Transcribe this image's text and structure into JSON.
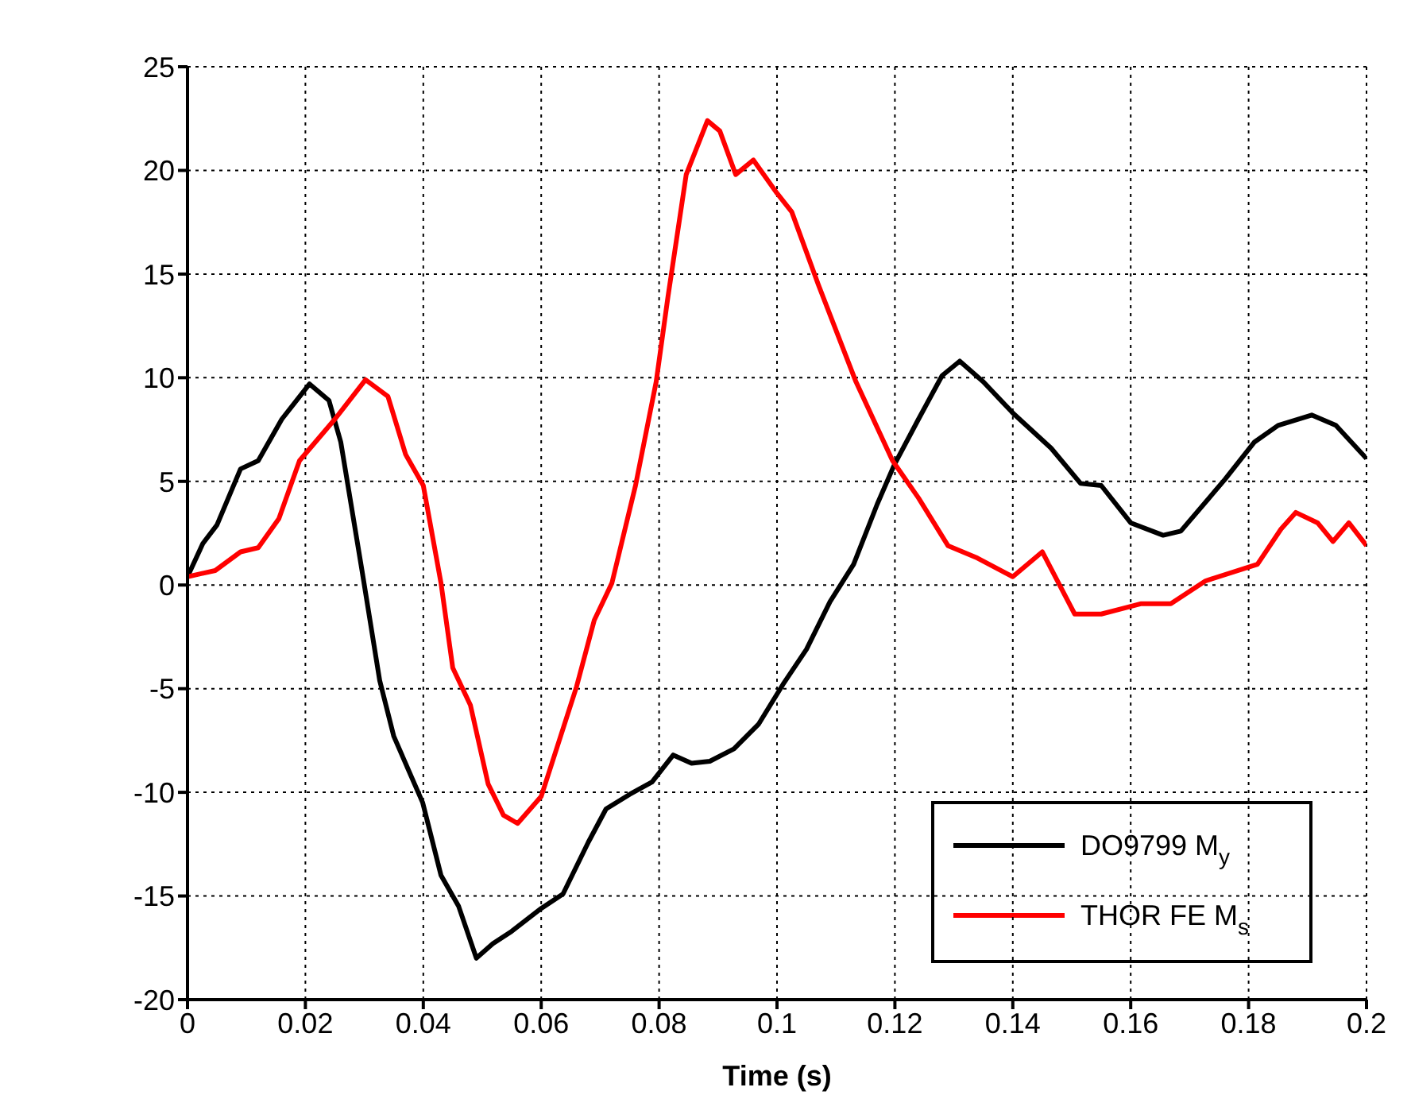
{
  "chart_data": {
    "type": "line",
    "xlabel": "Time (s)",
    "xlim": [
      0,
      0.2
    ],
    "xticks": [
      0,
      0.02,
      0.04,
      0.06,
      0.08,
      0.1,
      0.12,
      0.14,
      0.16,
      0.18,
      0.2
    ],
    "ylim": [
      -20,
      25
    ],
    "yticks": [
      -20,
      -15,
      -10,
      -5,
      0,
      5,
      10,
      15,
      20,
      25
    ],
    "grid": true,
    "legend": "bottom right",
    "marker": "none",
    "line_style": "solid",
    "series": [
      {
        "name": "DO9799 M$_{y}$",
        "color": "#000000",
        "x": [
          0,
          0.0026,
          0.005,
          0.009,
          0.012,
          0.016,
          0.0207,
          0.024,
          0.026,
          0.0296,
          0.0326,
          0.035,
          0.0399,
          0.043,
          0.046,
          0.049,
          0.0518,
          0.055,
          0.06,
          0.0637,
          0.068,
          0.071,
          0.075,
          0.0788,
          0.0824,
          0.0855,
          0.0886,
          0.0927,
          0.0969,
          0.101,
          0.105,
          0.109,
          0.113,
          0.117,
          0.1199,
          0.124,
          0.128,
          0.131,
          0.135,
          0.14,
          0.1465,
          0.1515,
          0.155,
          0.16,
          0.1655,
          0.1685,
          0.176,
          0.181,
          0.185,
          0.1907,
          0.1948,
          0.2
        ],
        "values": [
          0.4,
          2.0,
          2.9,
          5.6,
          6.0,
          8.0,
          9.7,
          8.9,
          6.9,
          0.7,
          -4.6,
          -7.3,
          -10.5,
          -14.0,
          -15.5,
          -18.0,
          -17.3,
          -16.7,
          -15.6,
          -14.9,
          -12.4,
          -10.8,
          -10.1,
          -9.5,
          -8.2,
          -8.6,
          -8.5,
          -7.9,
          -6.7,
          -4.8,
          -3.1,
          -0.8,
          1.0,
          3.9,
          5.8,
          8.0,
          10.1,
          10.8,
          9.8,
          8.3,
          6.6,
          4.9,
          4.8,
          3.0,
          2.4,
          2.6,
          5.1,
          6.9,
          7.7,
          8.2,
          7.7,
          6.1
        ]
      },
      {
        "name": "THOR FE M$_{s}$",
        "color": "#ff0000",
        "x": [
          0,
          0.0047,
          0.009,
          0.012,
          0.0155,
          0.019,
          0.025,
          0.0302,
          0.034,
          0.037,
          0.04,
          0.043,
          0.045,
          0.048,
          0.051,
          0.0536,
          0.056,
          0.06,
          0.066,
          0.069,
          0.072,
          0.076,
          0.0795,
          0.0815,
          0.0846,
          0.0882,
          0.0903,
          0.093,
          0.096,
          0.1,
          0.1025,
          0.107,
          0.1134,
          0.1196,
          0.124,
          0.129,
          0.134,
          0.14,
          0.145,
          0.1505,
          0.155,
          0.1618,
          0.1668,
          0.1727,
          0.1815,
          0.1855,
          0.188,
          0.1917,
          0.1943,
          0.197,
          0.2
        ],
        "values": [
          0.4,
          0.7,
          1.6,
          1.8,
          3.2,
          6.0,
          8.0,
          9.9,
          9.1,
          6.3,
          4.8,
          0.1,
          -4.0,
          -5.8,
          -9.6,
          -11.1,
          -11.5,
          -10.2,
          -4.9,
          -1.7,
          0.1,
          4.8,
          9.8,
          13.9,
          19.8,
          22.4,
          21.9,
          19.8,
          20.5,
          18.9,
          18.0,
          14.5,
          9.8,
          6.0,
          4.2,
          1.9,
          1.3,
          0.4,
          1.6,
          -1.4,
          -1.4,
          -0.9,
          -0.9,
          0.2,
          1.0,
          2.7,
          3.5,
          3.0,
          2.1,
          3.0,
          1.9
        ]
      }
    ]
  }
}
